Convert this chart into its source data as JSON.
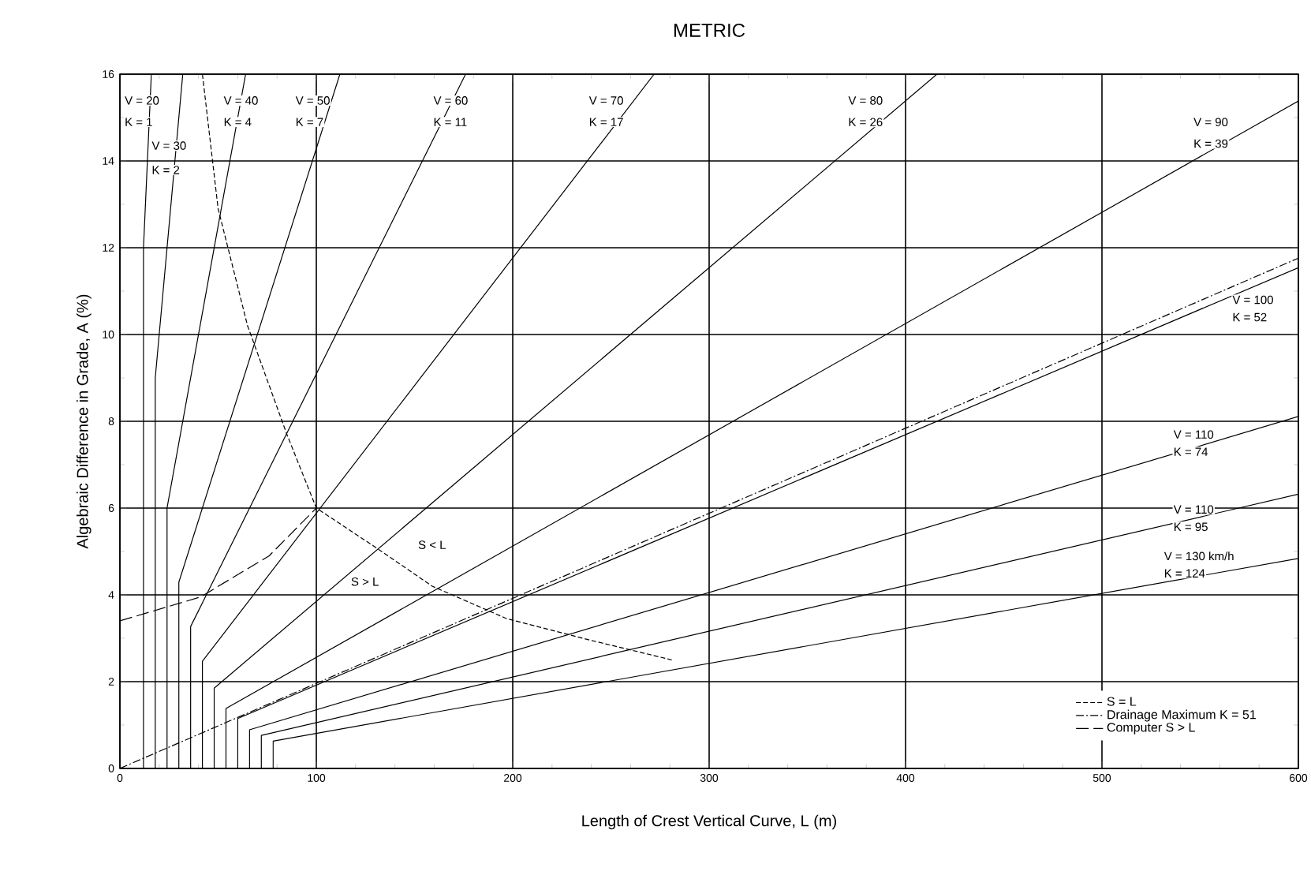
{
  "chart_data": {
    "type": "line",
    "title": "METRIC",
    "xlabel": "Length of Crest Vertical Curve, L (m)",
    "ylabel": "Algebraic Difference in Grade, A (%)",
    "xlim": [
      0,
      600
    ],
    "ylim": [
      0,
      16
    ],
    "xticks": [
      0,
      100,
      200,
      300,
      400,
      500,
      600
    ],
    "yticks": [
      0,
      2,
      4,
      6,
      8,
      10,
      12,
      14,
      16
    ],
    "grid": true,
    "legend": "bottom right",
    "marker": "none",
    "series": [
      {
        "color": "#000000",
        "line_style": "solid",
        "x": [
          12,
          12,
          16
        ],
        "values": [
          0,
          12,
          16
        ]
      },
      {
        "color": "#000000",
        "line_style": "solid",
        "x": [
          18,
          18,
          32
        ],
        "values": [
          0,
          9,
          16
        ]
      },
      {
        "color": "#000000",
        "line_style": "solid",
        "x": [
          24,
          24,
          64
        ],
        "values": [
          0,
          6,
          16
        ]
      },
      {
        "color": "#000000",
        "line_style": "solid",
        "x": [
          30,
          30,
          112
        ],
        "values": [
          0,
          4.29,
          16
        ]
      },
      {
        "color": "#000000",
        "line_style": "solid",
        "x": [
          36,
          36,
          176
        ],
        "values": [
          0,
          3.27,
          16
        ]
      },
      {
        "color": "#000000",
        "line_style": "solid",
        "x": [
          42,
          42,
          272
        ],
        "values": [
          0,
          2.47,
          16
        ]
      },
      {
        "color": "#000000",
        "line_style": "solid",
        "x": [
          48,
          48,
          416
        ],
        "values": [
          0,
          1.85,
          16
        ]
      },
      {
        "color": "#000000",
        "line_style": "solid",
        "x": [
          54,
          54,
          600
        ],
        "values": [
          0,
          1.38,
          15.38
        ]
      },
      {
        "color": "#000000",
        "line_style": "solid",
        "x": [
          60,
          60,
          600
        ],
        "values": [
          0,
          1.15,
          11.54
        ]
      },
      {
        "color": "#000000",
        "line_style": "solid",
        "x": [
          66,
          66,
          600
        ],
        "values": [
          0,
          0.89,
          8.11
        ]
      },
      {
        "color": "#000000",
        "line_style": "solid",
        "x": [
          72,
          72,
          600
        ],
        "values": [
          0,
          0.76,
          6.32
        ]
      },
      {
        "color": "#000000",
        "line_style": "solid",
        "x": [
          78,
          78,
          600
        ],
        "values": [
          0,
          0.63,
          4.84
        ]
      },
      {
        "name": "S = L",
        "color": "#000000",
        "line_style": "dashed",
        "x": [
          42,
          50,
          65,
          85,
          100,
          130,
          159,
          197,
          240,
          281
        ],
        "values": [
          16,
          12.9,
          10.2,
          7.7,
          6.0,
          5.1,
          4.2,
          3.45,
          2.95,
          2.5
        ]
      },
      {
        "name": "Drainage Maximum K = 51",
        "color": "#000000",
        "line_style": "dashdot",
        "x": [
          0,
          600
        ],
        "values": [
          0,
          11.76
        ]
      },
      {
        "name": "Computer S > L",
        "color": "#000000",
        "line_style": "longdash",
        "x": [
          0,
          41,
          76,
          100
        ],
        "values": [
          3.4,
          3.95,
          4.9,
          6.0
        ]
      }
    ],
    "annotations": [
      "V = 20",
      "K = 1",
      "V = 30",
      "K = 2",
      "V = 40",
      "K = 4",
      "V = 50",
      "K = 7",
      "V = 60",
      "K = 11",
      "V = 70",
      "K = 17",
      "V = 80",
      "K = 26",
      "V = 90",
      "K = 39",
      "V = 100",
      "K = 52",
      "V = 110",
      "K = 74",
      "V = 110",
      "K = 95",
      "V = 130 km/h",
      "K = 124",
      "S < L",
      "S > L"
    ]
  }
}
